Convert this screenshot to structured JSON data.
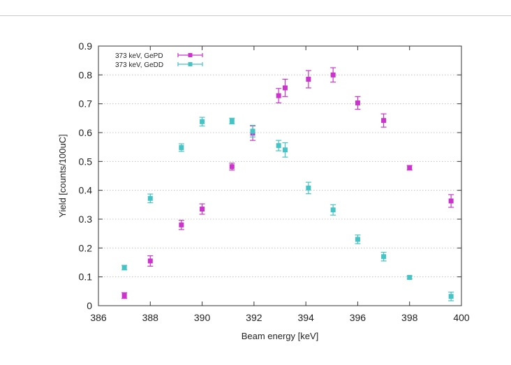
{
  "chart_data": {
    "type": "scatter",
    "xlabel": "Beam energy [keV]",
    "ylabel": "Yield [counts/100uC]",
    "xlim": [
      386,
      400
    ],
    "ylim": [
      0,
      0.9
    ],
    "x_ticks": [
      "386",
      "388",
      "390",
      "392",
      "394",
      "396",
      "398",
      "400"
    ],
    "y_ticks": [
      "0",
      "0.1",
      "0.2",
      "0.3",
      "0.4",
      "0.5",
      "0.6",
      "0.7",
      "0.8",
      "0.9"
    ],
    "grid": true,
    "legend_position": "top-left",
    "error_bars": true,
    "series": [
      {
        "name": "373 keV, GePD",
        "color": "#cc33cc",
        "points": [
          {
            "x": 387.0,
            "y": 0.035,
            "err": 0.01
          },
          {
            "x": 388.0,
            "y": 0.155,
            "err": 0.018
          },
          {
            "x": 389.2,
            "y": 0.28,
            "err": 0.016
          },
          {
            "x": 390.0,
            "y": 0.335,
            "err": 0.018
          },
          {
            "x": 391.15,
            "y": 0.482,
            "err": 0.012
          },
          {
            "x": 391.95,
            "y": 0.598,
            "err": 0.025
          },
          {
            "x": 392.95,
            "y": 0.728,
            "err": 0.025
          },
          {
            "x": 393.2,
            "y": 0.755,
            "err": 0.03
          },
          {
            "x": 394.1,
            "y": 0.785,
            "err": 0.03
          },
          {
            "x": 395.05,
            "y": 0.8,
            "err": 0.025
          },
          {
            "x": 396.0,
            "y": 0.703,
            "err": 0.022
          },
          {
            "x": 397.0,
            "y": 0.642,
            "err": 0.023
          },
          {
            "x": 398.0,
            "y": 0.478,
            "err": 0.008
          },
          {
            "x": 399.6,
            "y": 0.363,
            "err": 0.022
          }
        ]
      },
      {
        "name": "373 keV, GeDD",
        "color": "#44c4c4",
        "points": [
          {
            "x": 387.0,
            "y": 0.132,
            "err": 0.008
          },
          {
            "x": 388.0,
            "y": 0.372,
            "err": 0.015
          },
          {
            "x": 389.2,
            "y": 0.548,
            "err": 0.013
          },
          {
            "x": 390.0,
            "y": 0.638,
            "err": 0.015
          },
          {
            "x": 391.15,
            "y": 0.64,
            "err": 0.01
          },
          {
            "x": 391.95,
            "y": 0.605,
            "err": 0.02
          },
          {
            "x": 392.95,
            "y": 0.555,
            "err": 0.018
          },
          {
            "x": 393.2,
            "y": 0.54,
            "err": 0.025
          },
          {
            "x": 394.1,
            "y": 0.408,
            "err": 0.02
          },
          {
            "x": 395.05,
            "y": 0.332,
            "err": 0.018
          },
          {
            "x": 396.0,
            "y": 0.23,
            "err": 0.015
          },
          {
            "x": 397.0,
            "y": 0.17,
            "err": 0.015
          },
          {
            "x": 398.0,
            "y": 0.098,
            "err": 0.005
          },
          {
            "x": 399.6,
            "y": 0.032,
            "err": 0.015
          }
        ]
      }
    ]
  }
}
